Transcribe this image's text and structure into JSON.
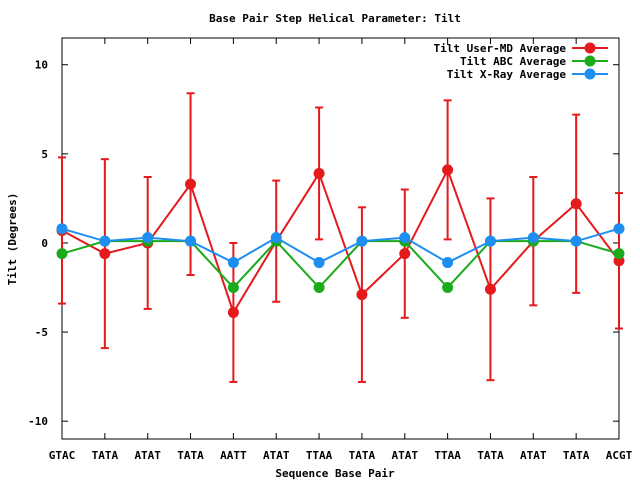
{
  "chart_data": {
    "type": "line",
    "title": "Base Pair Step Helical Parameter: Tilt",
    "xlabel": "Sequence Base Pair",
    "ylabel": "Tilt (Degrees)",
    "categories": [
      "GTAC",
      "TATA",
      "ATAT",
      "TATA",
      "AATT",
      "ATAT",
      "TTAA",
      "TATA",
      "ATAT",
      "TTAA",
      "TATA",
      "ATAT",
      "TATA",
      "ACGT"
    ],
    "ylim": [
      -11,
      11.5
    ],
    "yticks": [
      10,
      5,
      0,
      -5,
      -10
    ],
    "ytick_labels": [
      "10",
      "5",
      "0",
      "-5",
      "-10"
    ],
    "grid": false,
    "legend_position": "top-right",
    "series": [
      {
        "name": "Tilt User-MD Average",
        "color": "#e41a1c",
        "values": [
          0.7,
          -0.6,
          0.0,
          3.3,
          -3.9,
          0.1,
          3.9,
          -2.9,
          -0.6,
          4.1,
          -2.6,
          0.1,
          2.2,
          -1.0
        ],
        "error": [
          4.1,
          5.3,
          3.7,
          5.1,
          3.9,
          3.4,
          3.7,
          4.9,
          3.6,
          3.9,
          5.1,
          3.6,
          5.0,
          3.8
        ]
      },
      {
        "name": "Tilt ABC Average",
        "color": "#1aaa1a",
        "values": [
          -0.6,
          0.1,
          0.1,
          0.1,
          -2.5,
          0.1,
          -2.5,
          0.1,
          0.1,
          -2.5,
          0.1,
          0.1,
          0.1,
          -0.6
        ]
      },
      {
        "name": "Tilt X-Ray Average",
        "color": "#1e8ff0",
        "values": [
          0.8,
          0.1,
          0.3,
          0.1,
          -1.1,
          0.3,
          -1.1,
          0.1,
          0.3,
          -1.1,
          0.1,
          0.3,
          0.1,
          0.8
        ]
      }
    ]
  }
}
